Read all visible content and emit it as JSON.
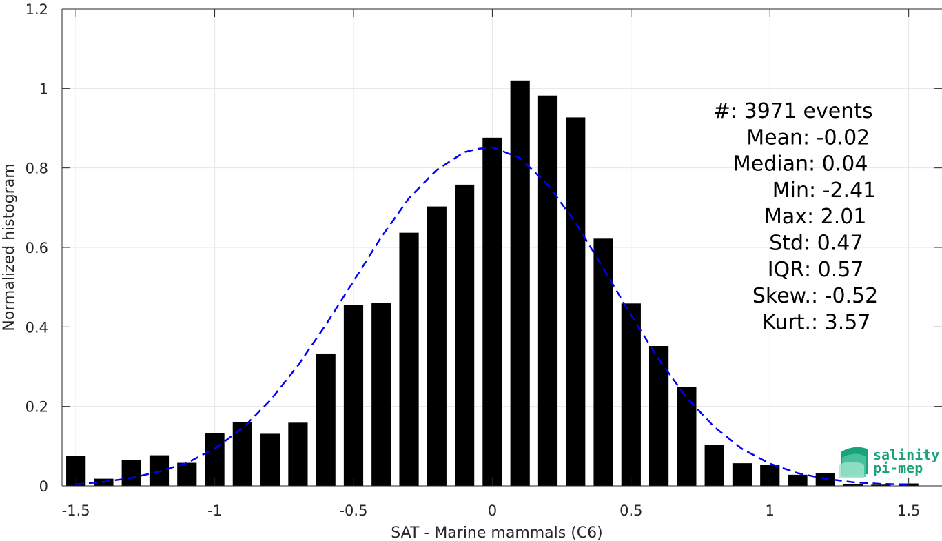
{
  "chart_data": {
    "type": "bar",
    "xlabel": "SAT - Marine mammals (C6)",
    "ylabel": "Normalized histogram",
    "xlim": [
      -1.55,
      1.62
    ],
    "ylim": [
      0,
      1.2
    ],
    "xticks": [
      -1.5,
      -1,
      -0.5,
      0,
      0.5,
      1,
      1.5
    ],
    "xtick_labels": [
      "-1.5",
      "-1",
      "-0.5",
      "0",
      "0.5",
      "1",
      "1.5"
    ],
    "yticks": [
      0,
      0.2,
      0.4,
      0.6,
      0.8,
      1,
      1.2
    ],
    "ytick_labels": [
      "0",
      "0.2",
      "0.4",
      "0.6",
      "0.8",
      "1",
      "1.2"
    ],
    "grid": true,
    "bar_width": 0.07,
    "bars": {
      "x": [
        -1.5,
        -1.4,
        -1.3,
        -1.2,
        -1.1,
        -1.0,
        -0.9,
        -0.8,
        -0.7,
        -0.6,
        -0.5,
        -0.4,
        -0.3,
        -0.2,
        -0.1,
        0.0,
        0.1,
        0.2,
        0.3,
        0.4,
        0.5,
        0.6,
        0.7,
        0.8,
        0.9,
        1.0,
        1.1,
        1.2,
        1.3,
        1.4,
        1.5
      ],
      "values": [
        0.075,
        0.018,
        0.065,
        0.077,
        0.058,
        0.133,
        0.161,
        0.131,
        0.159,
        0.333,
        0.455,
        0.46,
        0.637,
        0.703,
        0.758,
        0.876,
        1.02,
        0.982,
        0.927,
        0.622,
        0.459,
        0.352,
        0.249,
        0.104,
        0.057,
        0.053,
        0.028,
        0.032,
        0.004,
        0.003,
        0.006
      ]
    },
    "fit_curve": {
      "style": "dashed",
      "color": "#0000ff",
      "x": [
        -1.5,
        -1.4,
        -1.3,
        -1.2,
        -1.1,
        -1.0,
        -0.9,
        -0.8,
        -0.7,
        -0.6,
        -0.5,
        -0.4,
        -0.3,
        -0.2,
        -0.1,
        -0.05,
        0.0,
        0.1,
        0.2,
        0.3,
        0.4,
        0.5,
        0.6,
        0.7,
        0.8,
        0.9,
        1.0,
        1.1,
        1.2,
        1.3,
        1.4,
        1.5
      ],
      "y": [
        0.004,
        0.01,
        0.02,
        0.036,
        0.058,
        0.094,
        0.145,
        0.215,
        0.303,
        0.405,
        0.515,
        0.626,
        0.724,
        0.795,
        0.84,
        0.848,
        0.852,
        0.825,
        0.758,
        0.662,
        0.548,
        0.429,
        0.318,
        0.222,
        0.148,
        0.093,
        0.056,
        0.032,
        0.018,
        0.009,
        0.005,
        0.003
      ]
    }
  },
  "stats": [
    {
      "label": "#  ",
      "value": ": 3971 events"
    },
    {
      "label": "Mean ",
      "value": ": -0.02"
    },
    {
      "label": "Median ",
      "value": ": 0.04"
    },
    {
      "label": "Min ",
      "value": ": -2.41"
    },
    {
      "label": "Max ",
      "value": ": 2.01"
    },
    {
      "label": "Std ",
      "value": ": 0.47"
    },
    {
      "label": "IQR ",
      "value": ": 0.57"
    },
    {
      "label": "Skew. ",
      "value": ": -0.52"
    },
    {
      "label": "Kurt. ",
      "value": ": 3.57"
    }
  ],
  "logo": {
    "line1": "salinity",
    "line2": "pi-mep",
    "color": "#1aa37a"
  }
}
